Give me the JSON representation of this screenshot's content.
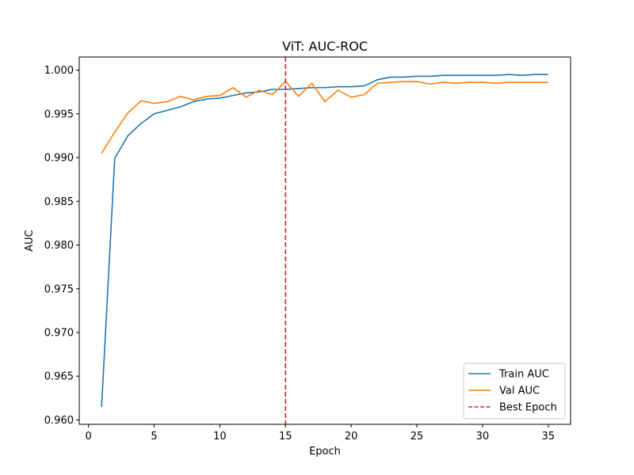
{
  "chart_data": {
    "type": "line",
    "title": "ViT: AUC-ROC",
    "xlabel": "Epoch",
    "ylabel": "AUC",
    "xlim": [
      -0.7,
      36.7
    ],
    "ylim": [
      0.9595,
      1.0015
    ],
    "xticks": [
      0,
      5,
      10,
      15,
      20,
      25,
      30,
      35
    ],
    "yticks": [
      0.96,
      0.965,
      0.97,
      0.975,
      0.98,
      0.985,
      0.99,
      0.995,
      1.0
    ],
    "ytick_labels": [
      "0.960",
      "0.965",
      "0.970",
      "0.975",
      "0.980",
      "0.985",
      "0.990",
      "0.995",
      "1.000"
    ],
    "x": [
      1,
      2,
      3,
      4,
      5,
      6,
      7,
      8,
      9,
      10,
      11,
      12,
      13,
      14,
      15,
      16,
      17,
      18,
      19,
      20,
      21,
      22,
      23,
      24,
      25,
      26,
      27,
      28,
      29,
      30,
      31,
      32,
      33,
      34,
      35
    ],
    "series": [
      {
        "name": "Train AUC",
        "color": "#1f77b4",
        "values": [
          0.9615,
          0.9899,
          0.9925,
          0.9939,
          0.995,
          0.9954,
          0.9958,
          0.9964,
          0.9967,
          0.9968,
          0.9971,
          0.9974,
          0.9975,
          0.9978,
          0.9978,
          0.9979,
          0.998,
          0.998,
          0.9981,
          0.9981,
          0.9982,
          0.9989,
          0.9992,
          0.9992,
          0.9993,
          0.9993,
          0.9994,
          0.9994,
          0.9994,
          0.9994,
          0.9994,
          0.9995,
          0.9994,
          0.9995,
          0.9995
        ]
      },
      {
        "name": "Val AUC",
        "color": "#ff7f0e",
        "values": [
          0.9905,
          0.9929,
          0.9951,
          0.9965,
          0.9962,
          0.9964,
          0.997,
          0.9966,
          0.997,
          0.9971,
          0.998,
          0.9969,
          0.9977,
          0.9972,
          0.9987,
          0.997,
          0.9985,
          0.9964,
          0.9977,
          0.9969,
          0.9972,
          0.9985,
          0.9986,
          0.9987,
          0.9987,
          0.9984,
          0.9986,
          0.9985,
          0.9986,
          0.9986,
          0.9985,
          0.9986,
          0.9986,
          0.9986,
          0.9986
        ]
      }
    ],
    "best_epoch": {
      "label": "Best Epoch",
      "x": 15,
      "color": "#d62728"
    },
    "legend_position": "lower-right"
  }
}
